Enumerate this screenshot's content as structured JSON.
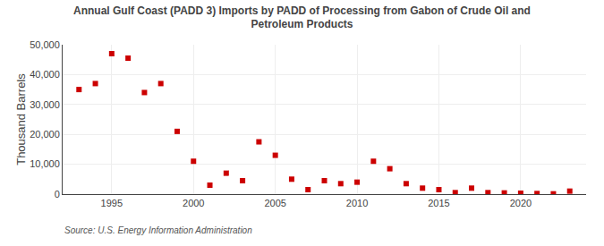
{
  "chart_data": {
    "type": "scatter",
    "title": "Annual Gulf Coast (PADD 3) Imports by PADD of Processing from Gabon of Crude Oil and\nPetroleum Products",
    "y_label": "Thousand Barrels",
    "annotations": [
      "Source: U.S. Energy Information Administration"
    ],
    "x": [
      1993,
      1994,
      1995,
      1996,
      1997,
      1998,
      1999,
      2000,
      2001,
      2002,
      2003,
      2004,
      2005,
      2006,
      2007,
      2008,
      2009,
      2010,
      2011,
      2012,
      2013,
      2014,
      2015,
      2016,
      2017,
      2018,
      2019,
      2020,
      2021,
      2022,
      2023
    ],
    "values": [
      35000,
      37000,
      47000,
      45500,
      34000,
      37000,
      21000,
      11000,
      3000,
      7000,
      4500,
      17500,
      13000,
      5000,
      1500,
      4500,
      3500,
      4000,
      11000,
      8500,
      3500,
      2000,
      1500,
      500,
      2000,
      500,
      400,
      300,
      200,
      100,
      1000
    ],
    "color": "#cc0000",
    "marker": "square",
    "xlim": [
      1992,
      2024
    ],
    "xticks": [
      1995,
      2000,
      2005,
      2010,
      2015,
      2020
    ],
    "ylim": [
      0,
      50000
    ],
    "yticks": [
      0,
      {
        "value": 10000,
        "label": "10,000"
      },
      {
        "value": 20000,
        "label": "20,000"
      },
      {
        "value": 30000,
        "label": "30,000"
      },
      {
        "value": 40000,
        "label": "40,000"
      },
      {
        "value": 50000,
        "label": "50,000"
      }
    ],
    "grid": true
  }
}
